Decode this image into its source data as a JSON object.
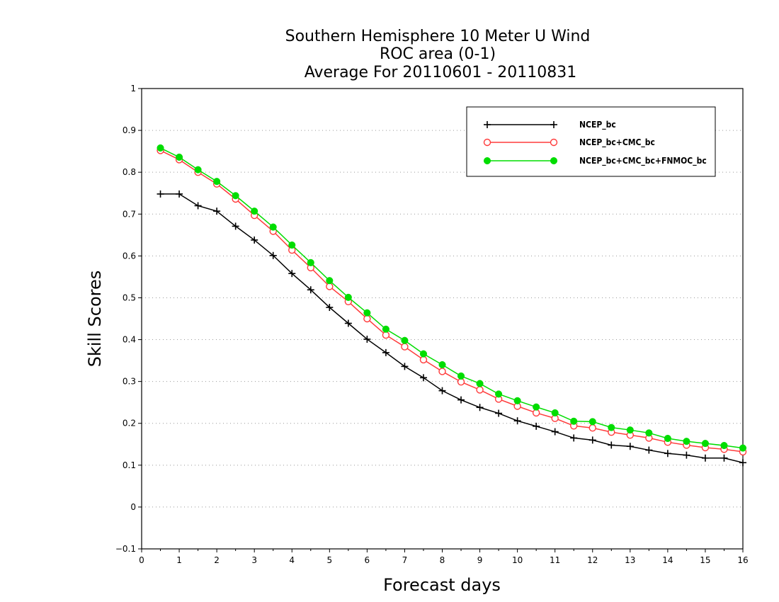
{
  "chart_data": {
    "type": "line",
    "title_lines": [
      "Southern Hemisphere 10 Meter U Wind",
      "ROC area (0-1)",
      "Average For 20110601 - 20110831"
    ],
    "xlabel": "Forecast days",
    "ylabel": "Skill Scores",
    "xlim": [
      0,
      16
    ],
    "ylim": [
      -0.1,
      1
    ],
    "x_ticks": [
      "0",
      "1",
      "2",
      "3",
      "4",
      "5",
      "6",
      "7",
      "8",
      "9",
      "10",
      "11",
      "12",
      "13",
      "14",
      "15",
      "16"
    ],
    "y_ticks": [
      "−0.1",
      "0",
      "0.1",
      "0.2",
      "0.3",
      "0.4",
      "0.5",
      "0.6",
      "0.7",
      "0.8",
      "0.9",
      "1"
    ],
    "y_tick_values": [
      -0.1,
      0,
      0.1,
      0.2,
      0.3,
      0.4,
      0.5,
      0.6,
      0.7,
      0.8,
      0.9,
      1.0
    ],
    "grid": "horizontal dotted",
    "legend_position": "top-right",
    "x": [
      0.5,
      1,
      1.5,
      2,
      2.5,
      3,
      3.5,
      4,
      4.5,
      5,
      5.5,
      6,
      6.5,
      7,
      7.5,
      8,
      8.5,
      9,
      9.5,
      10,
      10.5,
      11,
      11.5,
      12,
      12.5,
      13,
      13.5,
      14,
      14.5,
      15,
      15.5,
      16
    ],
    "series": [
      {
        "name": "NCEP_bc",
        "color": "#000000",
        "marker": "plus",
        "values": [
          0.748,
          0.748,
          0.72,
          0.707,
          0.671,
          0.638,
          0.601,
          0.558,
          0.519,
          0.477,
          0.439,
          0.401,
          0.369,
          0.336,
          0.309,
          0.278,
          0.256,
          0.238,
          0.224,
          0.206,
          0.193,
          0.18,
          0.165,
          0.16,
          0.148,
          0.145,
          0.136,
          0.128,
          0.124,
          0.117,
          0.117,
          0.106
        ]
      },
      {
        "name": "NCEP_bc+CMC_bc",
        "color": "#ff3b3b",
        "marker": "open-circle",
        "values": [
          0.852,
          0.83,
          0.8,
          0.772,
          0.736,
          0.697,
          0.659,
          0.614,
          0.572,
          0.527,
          0.491,
          0.45,
          0.411,
          0.383,
          0.352,
          0.324,
          0.299,
          0.28,
          0.258,
          0.241,
          0.225,
          0.212,
          0.194,
          0.189,
          0.179,
          0.172,
          0.165,
          0.155,
          0.148,
          0.142,
          0.138,
          0.132
        ]
      },
      {
        "name": "NCEP_bc+CMC_bc+FNMOC_bc",
        "color": "#00dd00",
        "marker": "filled-circle",
        "values": [
          0.858,
          0.836,
          0.806,
          0.778,
          0.744,
          0.707,
          0.669,
          0.626,
          0.584,
          0.541,
          0.501,
          0.464,
          0.425,
          0.398,
          0.366,
          0.34,
          0.313,
          0.295,
          0.27,
          0.254,
          0.239,
          0.225,
          0.205,
          0.204,
          0.19,
          0.184,
          0.177,
          0.164,
          0.157,
          0.152,
          0.147,
          0.141
        ]
      }
    ]
  }
}
